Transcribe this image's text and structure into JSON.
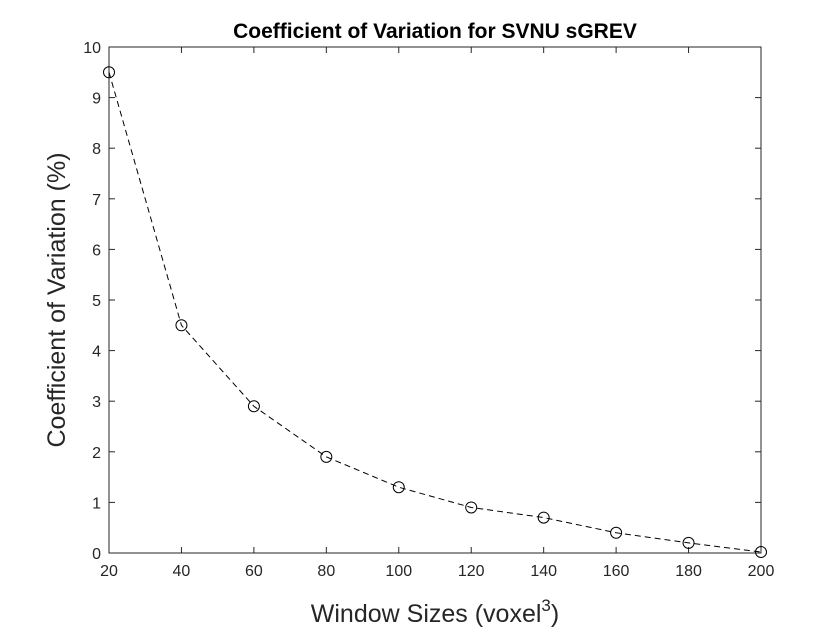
{
  "chart_data": {
    "type": "line",
    "title": "Coefficient of Variation for SVNU sGREV",
    "xlabel": "Window Sizes (voxel",
    "xlabel_superscript": "3",
    "xlabel_suffix": ")",
    "ylabel": "Coefficient of Variation (%)",
    "xlim": [
      20,
      200
    ],
    "ylim": [
      0,
      10
    ],
    "x_ticks": [
      20,
      40,
      60,
      80,
      100,
      120,
      140,
      160,
      180,
      200
    ],
    "y_ticks": [
      0,
      1,
      2,
      3,
      4,
      5,
      6,
      7,
      8,
      9,
      10
    ],
    "grid": false,
    "line_style": "dashed",
    "marker": "circle",
    "line_color": "#000000",
    "series": [
      {
        "x": [
          20,
          40,
          60,
          80,
          100,
          120,
          140,
          160,
          180,
          200
        ],
        "values": [
          9.5,
          4.5,
          2.9,
          1.9,
          1.3,
          0.9,
          0.7,
          0.4,
          0.2,
          0.02
        ]
      }
    ]
  }
}
